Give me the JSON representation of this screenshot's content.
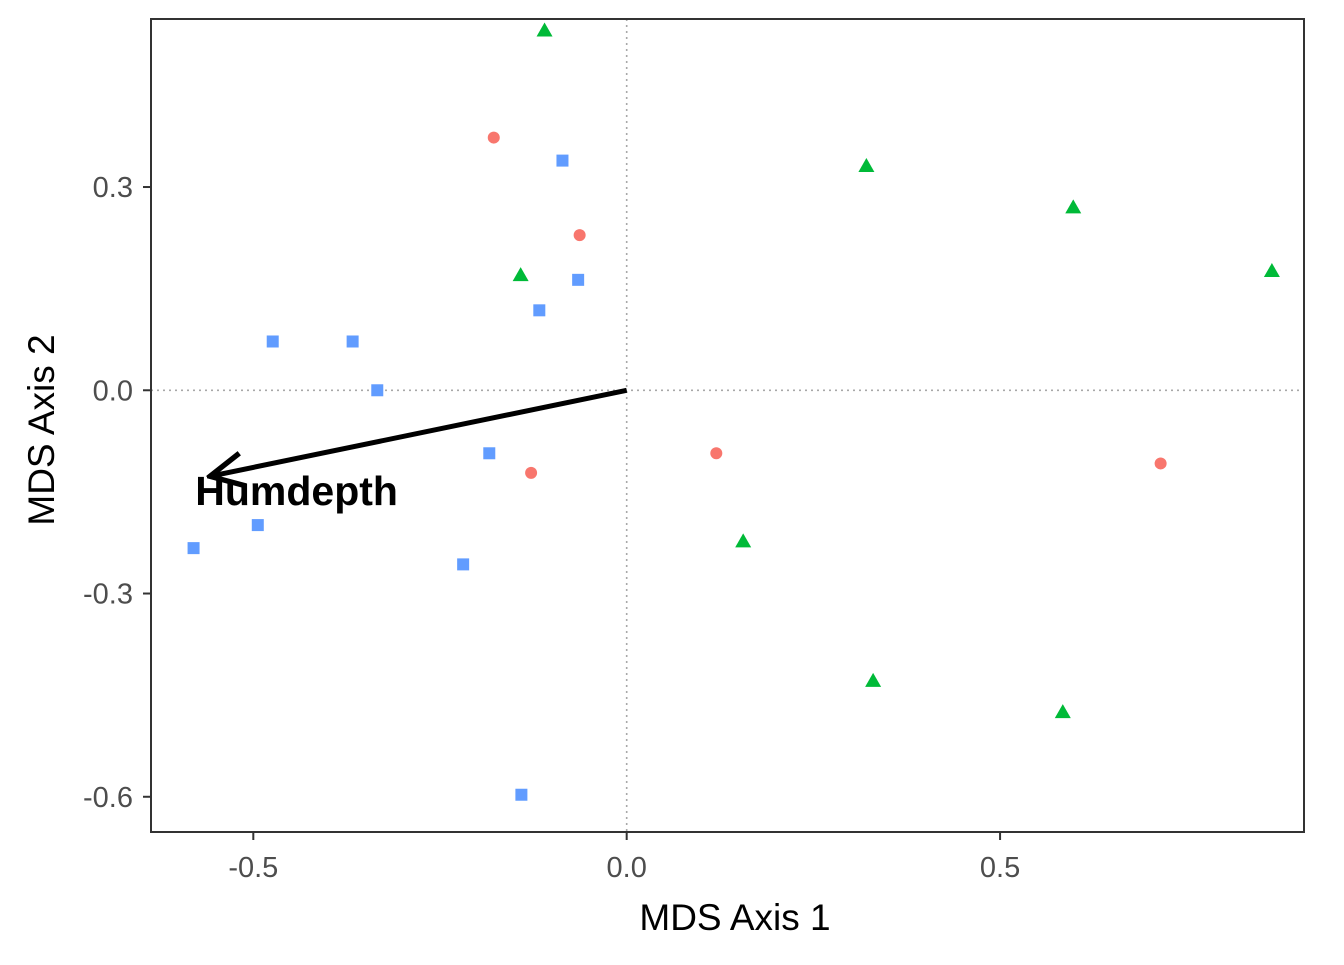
{
  "chart_data": {
    "type": "scatter",
    "xlabel": "MDS Axis 1",
    "ylabel": "MDS Axis 2",
    "xlim": [
      -0.637,
      0.907
    ],
    "ylim": [
      -0.652,
      0.548
    ],
    "xticks": [
      {
        "value": -0.5,
        "label": "-0.5"
      },
      {
        "value": 0.0,
        "label": "0.0"
      },
      {
        "value": 0.5,
        "label": "0.5"
      }
    ],
    "yticks": [
      {
        "value": 0.3,
        "label": "0.3"
      },
      {
        "value": 0.0,
        "label": "0.0"
      },
      {
        "value": -0.3,
        "label": "-0.3"
      },
      {
        "value": -0.6,
        "label": "-0.6"
      }
    ],
    "grid": false,
    "reference_lines": {
      "x": 0,
      "y": 0,
      "style": "dotted"
    },
    "series": [
      {
        "marker": "circle",
        "color": "#F8766D",
        "points": [
          [
            -0.178,
            0.373
          ],
          [
            -0.063,
            0.229
          ],
          [
            -0.128,
            -0.122
          ],
          [
            0.12,
            -0.093
          ],
          [
            0.715,
            -0.108
          ]
        ]
      },
      {
        "marker": "triangle",
        "color": "#00BA38",
        "points": [
          [
            -0.11,
            0.531
          ],
          [
            0.321,
            0.331
          ],
          [
            0.598,
            0.27
          ],
          [
            0.864,
            0.176
          ],
          [
            -0.142,
            0.17
          ],
          [
            0.156,
            -0.223
          ],
          [
            0.33,
            -0.429
          ],
          [
            0.584,
            -0.475
          ]
        ]
      },
      {
        "marker": "square",
        "color": "#619CFF",
        "points": [
          [
            -0.086,
            0.339
          ],
          [
            -0.065,
            0.163
          ],
          [
            -0.117,
            0.118
          ],
          [
            -0.474,
            0.072
          ],
          [
            -0.367,
            0.072
          ],
          [
            -0.334,
            0.0
          ],
          [
            -0.184,
            -0.093
          ],
          [
            -0.494,
            -0.199
          ],
          [
            -0.58,
            -0.233
          ],
          [
            -0.219,
            -0.257
          ],
          [
            -0.141,
            -0.597
          ]
        ]
      }
    ],
    "vectors": [
      {
        "label": "Humdepth",
        "x": -0.558,
        "y": -0.127,
        "label_x": -0.442,
        "label_y": -0.169
      }
    ]
  }
}
